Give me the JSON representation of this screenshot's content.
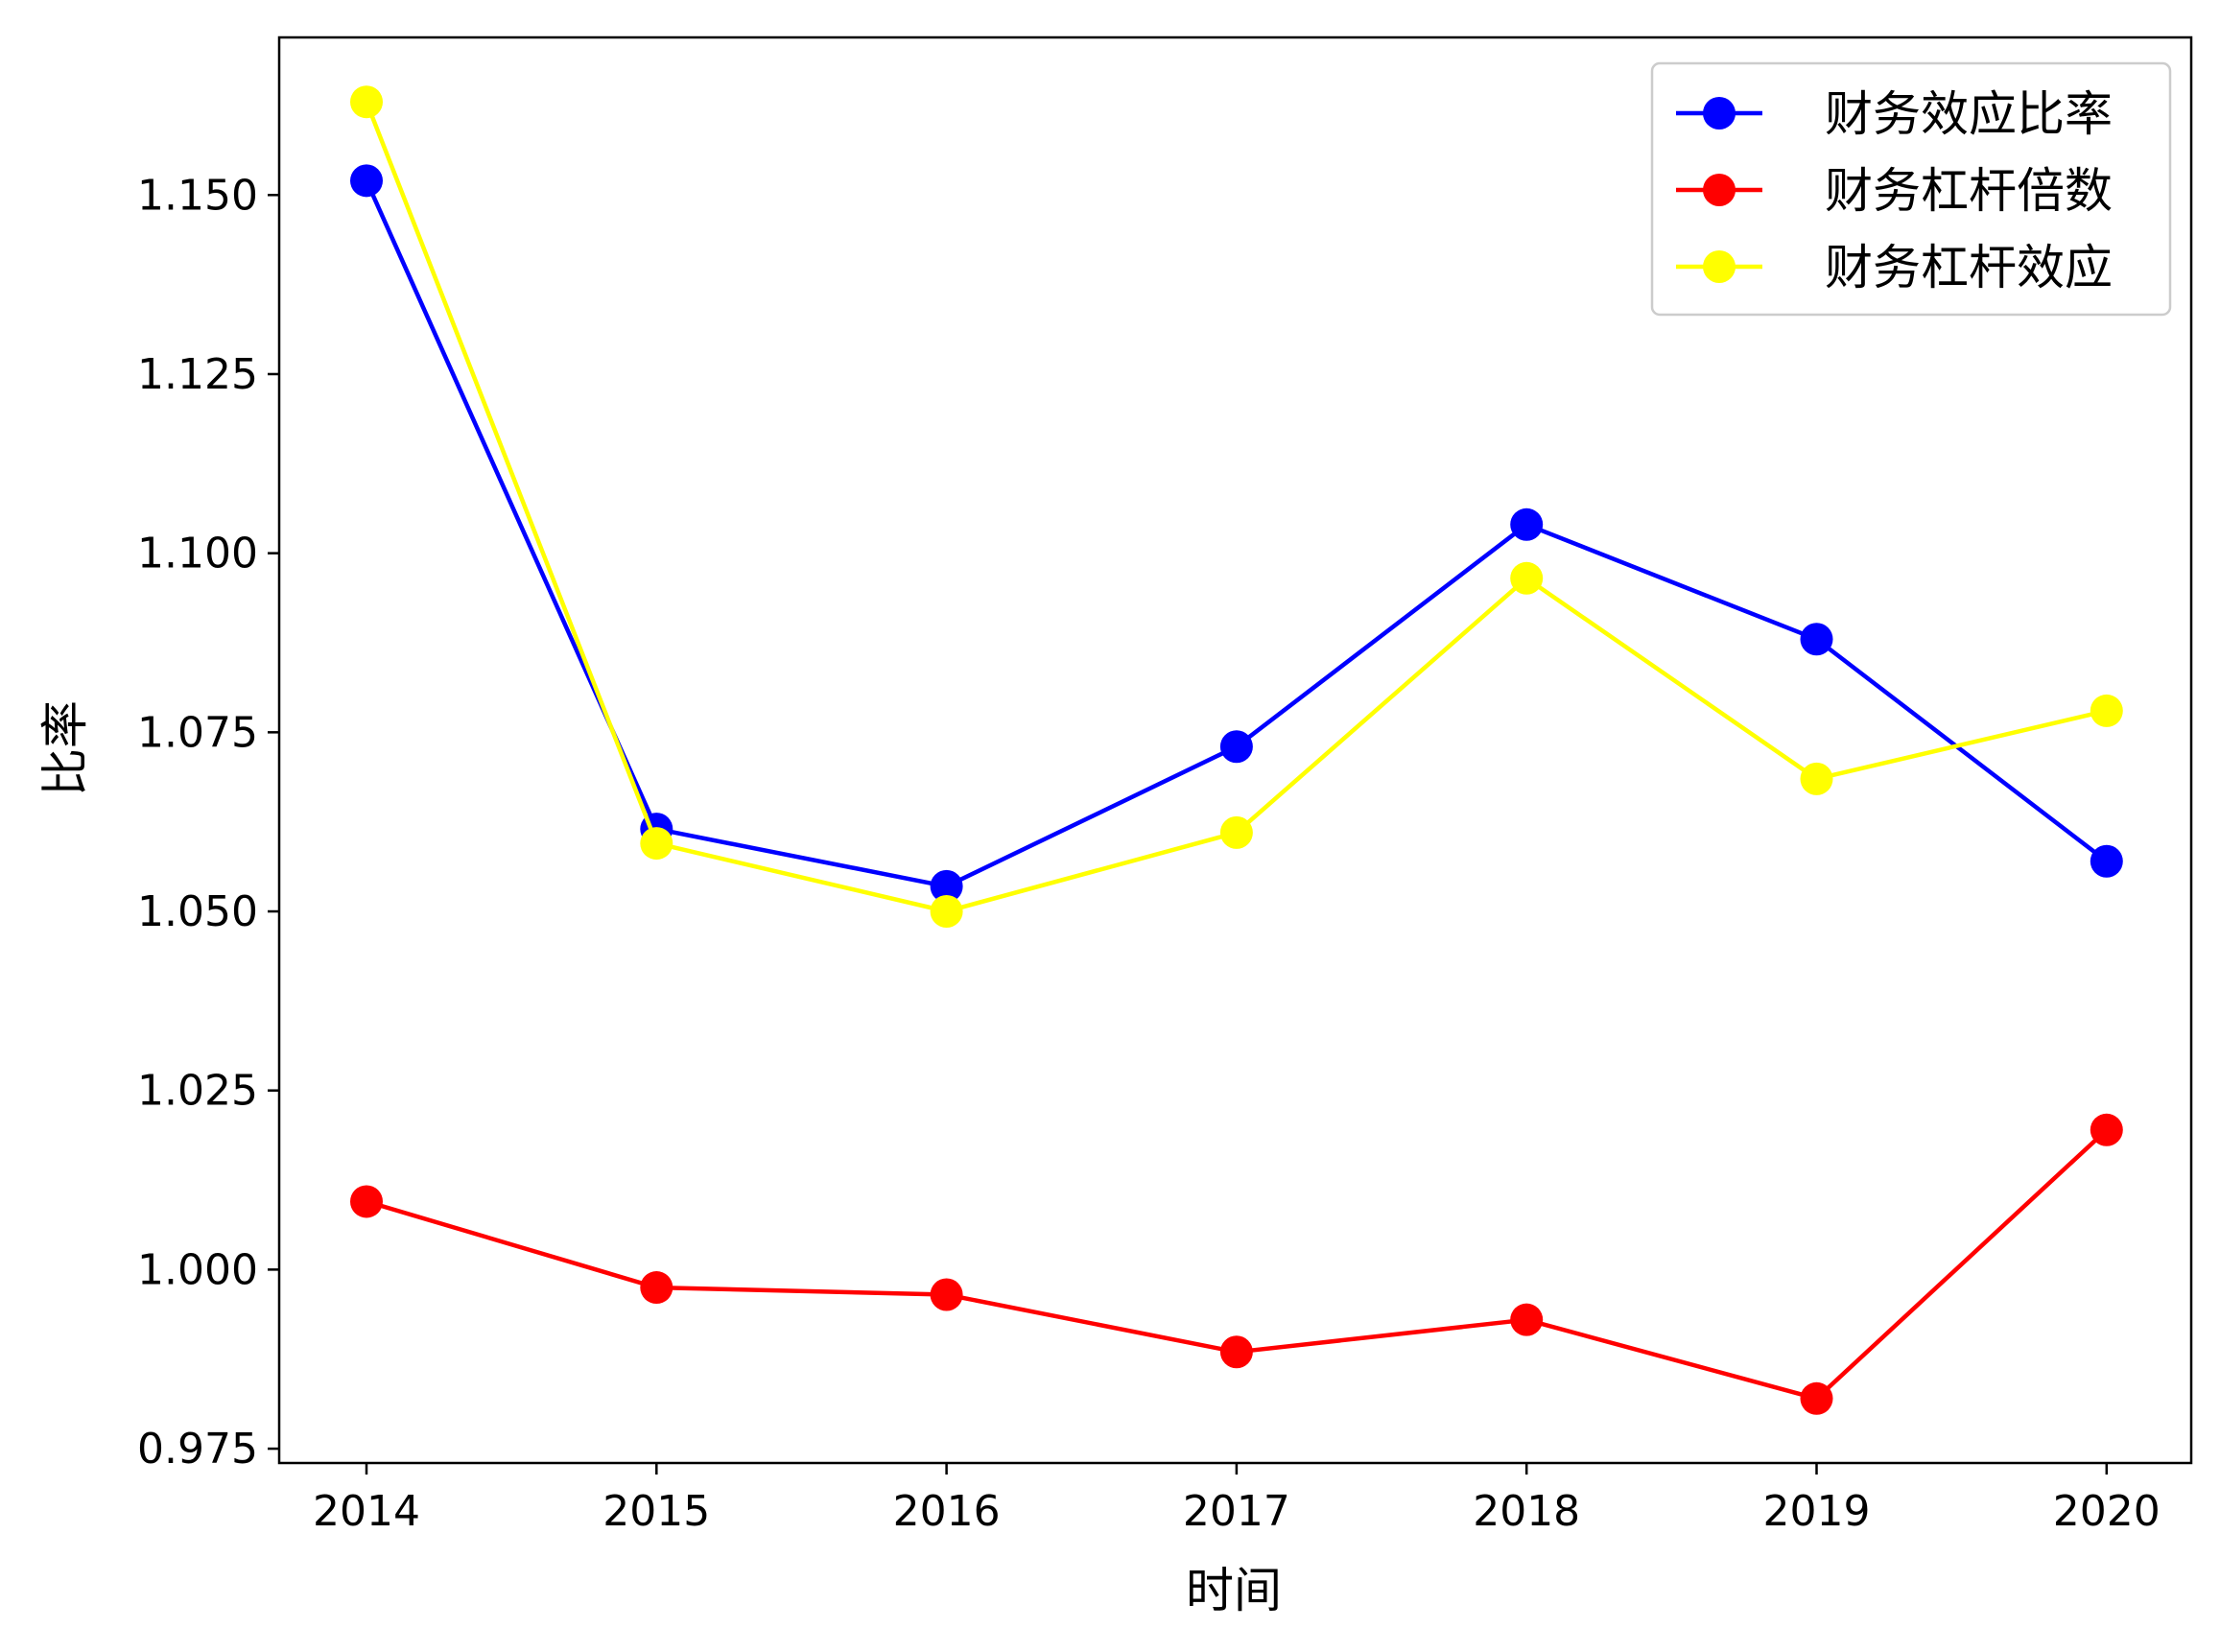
{
  "chart_data": {
    "type": "line",
    "title": "",
    "xlabel": "时间",
    "ylabel": "比率",
    "x": [
      "2014",
      "2015",
      "2016",
      "2017",
      "2018",
      "2019",
      "2020"
    ],
    "ylim": [
      0.973,
      1.172
    ],
    "yticks": [
      "0.975",
      "1.000",
      "1.025",
      "1.050",
      "1.075",
      "1.100",
      "1.125",
      "1.150"
    ],
    "grid": false,
    "legend_position": "top-right",
    "series": [
      {
        "name": "财务效应比率",
        "color": "#0000ff",
        "marker": "circle",
        "values": [
          1.152,
          1.0615,
          1.0535,
          1.073,
          1.104,
          1.088,
          1.057
        ]
      },
      {
        "name": "财务杠杆倍数",
        "color": "#ff0000",
        "marker": "circle",
        "values": [
          1.0095,
          0.9975,
          0.9965,
          0.9885,
          0.993,
          0.982,
          1.0195
        ]
      },
      {
        "name": "财务杠杆效应",
        "color": "#ffff00",
        "marker": "circle",
        "values": [
          1.163,
          1.0595,
          1.05,
          1.061,
          1.0965,
          1.0685,
          1.078
        ]
      }
    ]
  }
}
